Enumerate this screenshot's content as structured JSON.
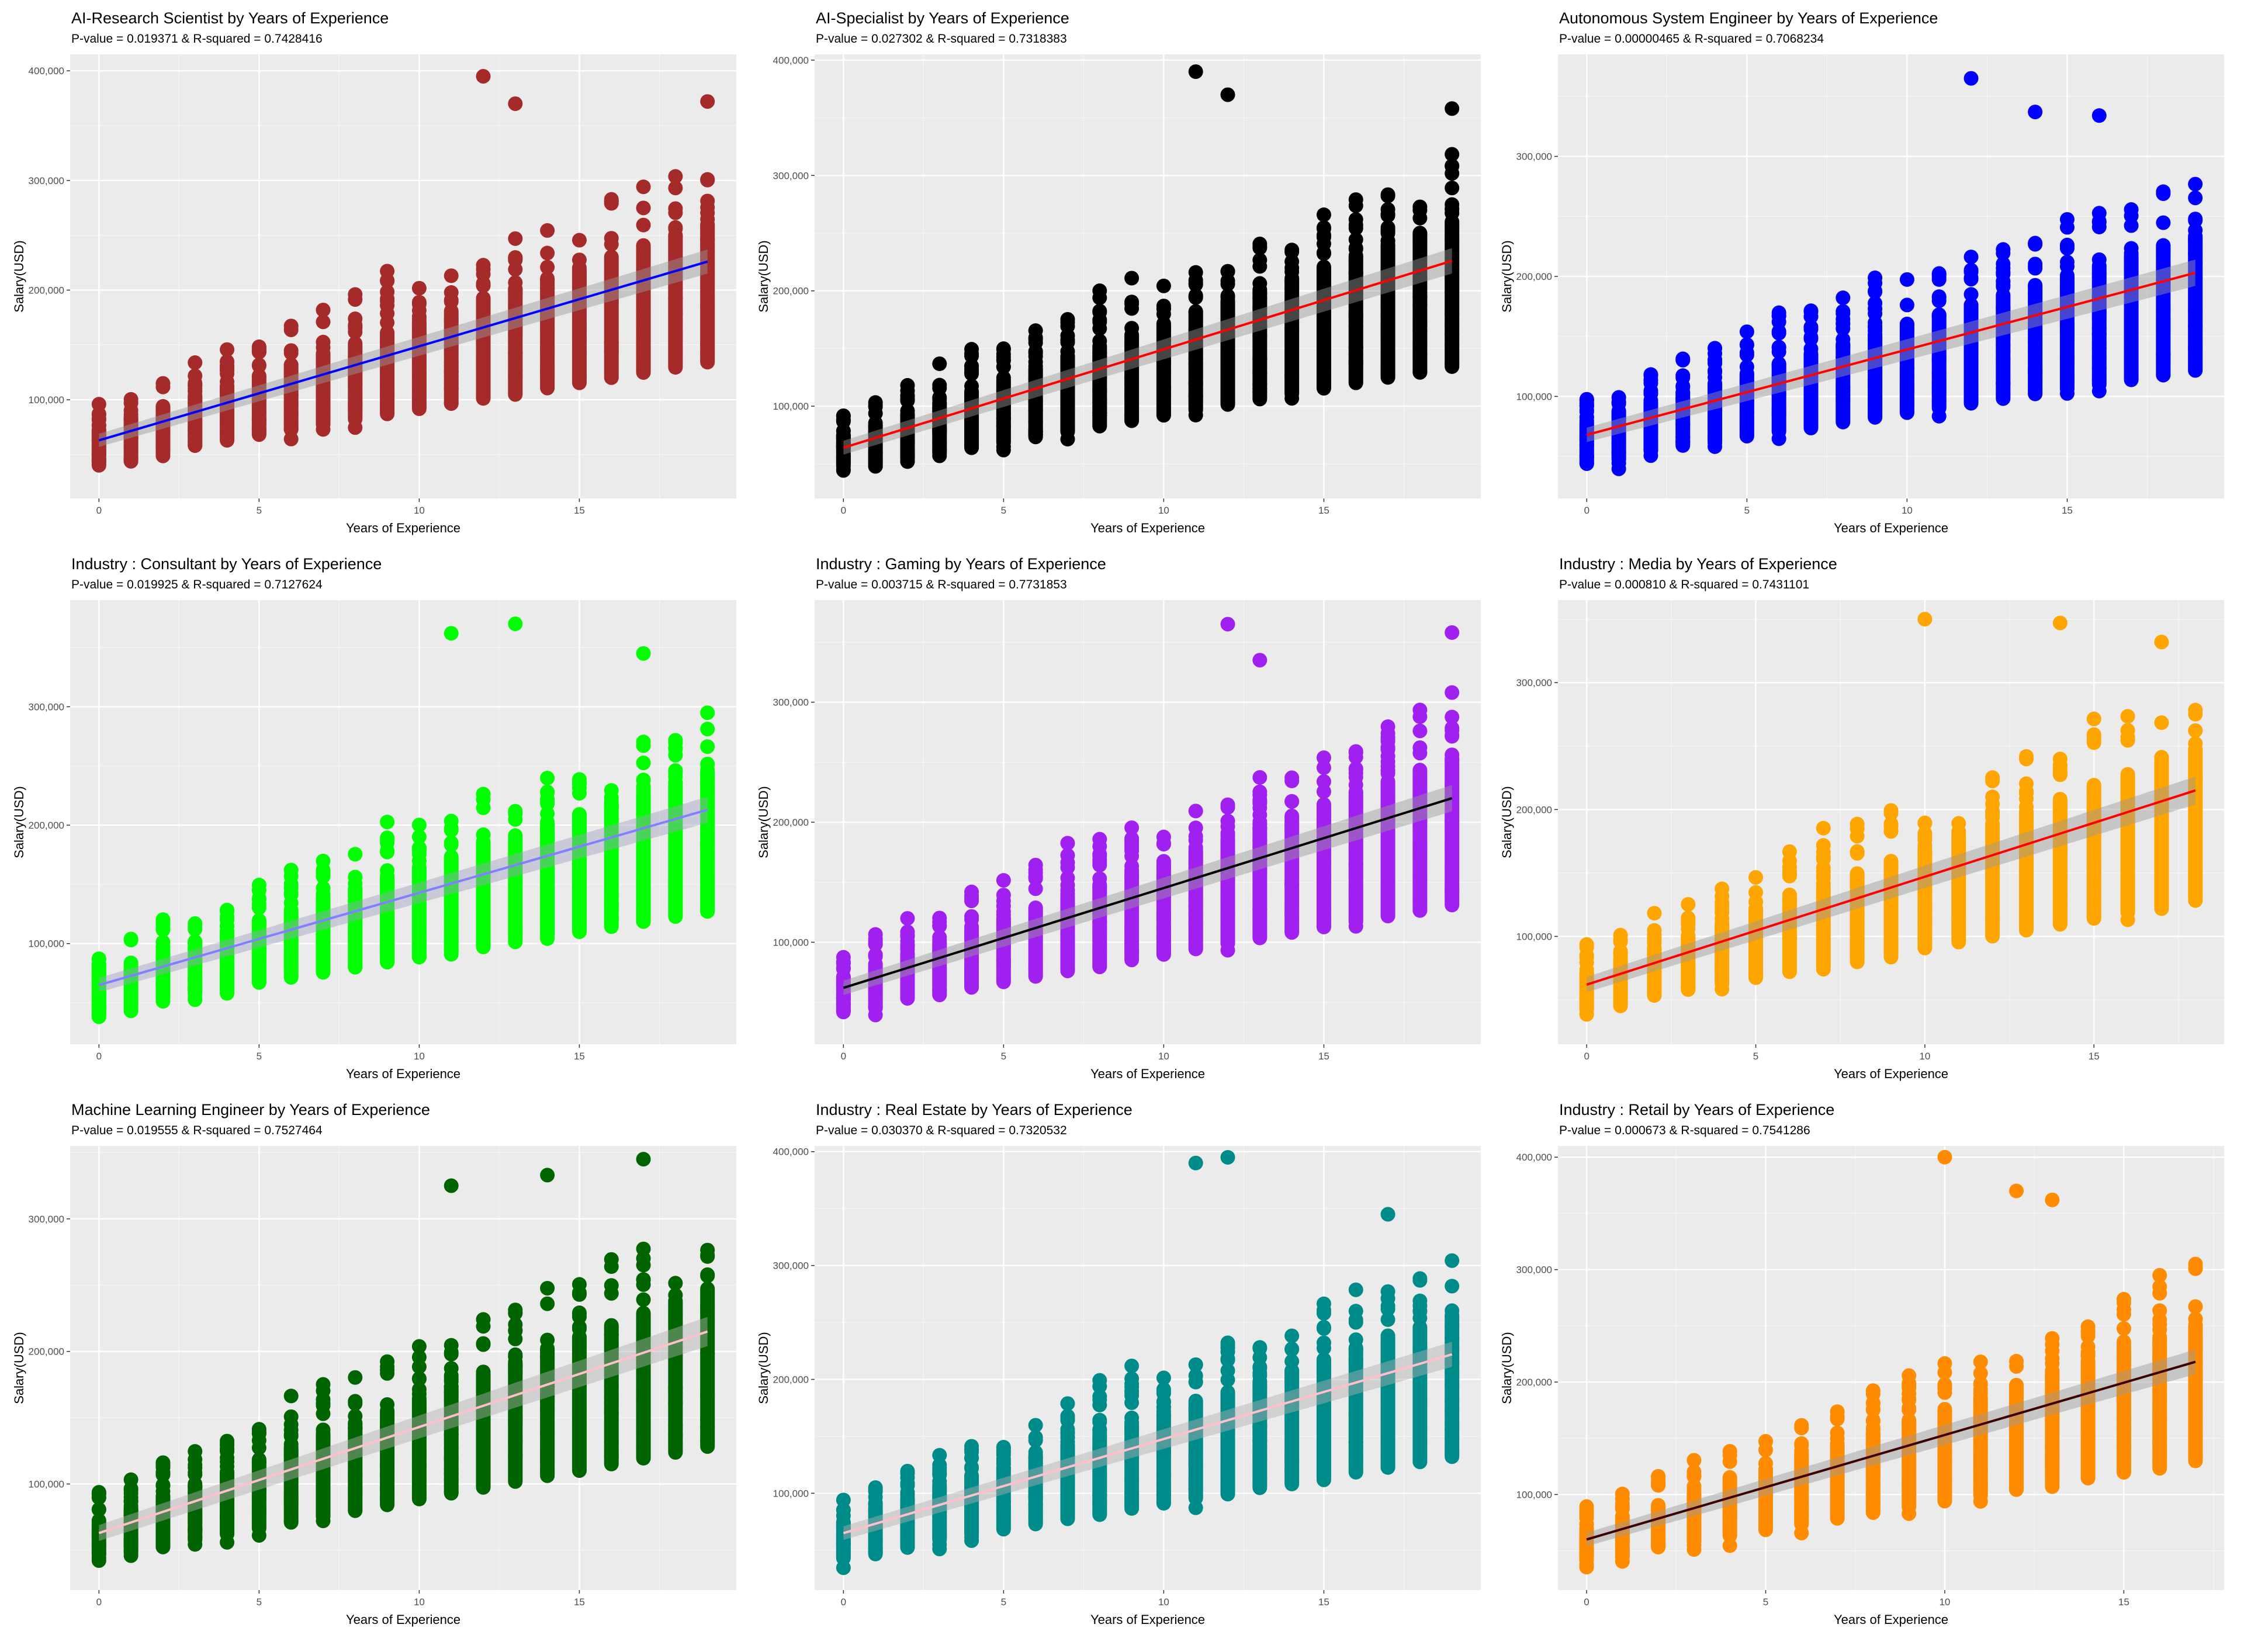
{
  "chart_data": [
    {
      "type": "scatter",
      "title": "AI-Research Scientist by Years of Experience",
      "subtitle": "P-value = 0.019371 & R-squared = 0.7428416",
      "xlabel": "Years of Experience",
      "ylabel": "Salary(USD)",
      "xlim": [
        -0.9,
        19.9
      ],
      "ylim": [
        10000,
        415000
      ],
      "x_ticks": [
        0,
        5,
        10,
        15
      ],
      "y_ticks": [
        100000,
        200000,
        300000,
        400000
      ],
      "y_tick_labels": [
        "100,000",
        "200,000",
        "300,000",
        "400,000"
      ],
      "grid": true,
      "point_color": "#A52A2A",
      "line_color": "#0000FF",
      "band_color": "#999999",
      "max_x": 19,
      "trend": {
        "x": [
          0,
          19
        ],
        "y": [
          63000,
          226000
        ]
      },
      "highlights": [
        [
          12,
          395000
        ],
        [
          19,
          372000
        ],
        [
          13,
          370000
        ]
      ]
    },
    {
      "type": "scatter",
      "title": "AI-Specialist by Years of Experience",
      "subtitle": "P-value = 0.027302 & R-squared = 0.7318383",
      "xlabel": "Years of Experience",
      "ylabel": "Salary(USD)",
      "xlim": [
        -0.9,
        19.9
      ],
      "ylim": [
        20000,
        405000
      ],
      "x_ticks": [
        0,
        5,
        10,
        15
      ],
      "y_ticks": [
        100000,
        200000,
        300000,
        400000
      ],
      "y_tick_labels": [
        "100,000",
        "200,000",
        "300,000",
        "400,000"
      ],
      "grid": true,
      "point_color": "#000000",
      "line_color": "#FF0000",
      "band_color": "#999999",
      "max_x": 19,
      "trend": {
        "x": [
          0,
          19
        ],
        "y": [
          64000,
          226000
        ]
      },
      "highlights": [
        [
          11,
          390000
        ],
        [
          12,
          370000
        ],
        [
          19,
          358000
        ]
      ]
    },
    {
      "type": "scatter",
      "title": "Autonomous System Engineer by Years of Experience",
      "subtitle": "P-value = 0.00000465 & R-squared = 0.7068234",
      "xlabel": "Years of Experience",
      "ylabel": "Salary(USD)",
      "xlim": [
        -0.9,
        19.9
      ],
      "ylim": [
        15000,
        385000
      ],
      "x_ticks": [
        0,
        5,
        10,
        15
      ],
      "y_ticks": [
        100000,
        200000,
        300000
      ],
      "y_tick_labels": [
        "100,000",
        "200,000",
        "300,000"
      ],
      "grid": true,
      "point_color": "#0000FF",
      "line_color": "#FF0000",
      "band_color": "#999999",
      "max_x": 19,
      "trend": {
        "x": [
          0,
          19
        ],
        "y": [
          68000,
          203000
        ]
      },
      "highlights": [
        [
          12,
          365000
        ],
        [
          14,
          337000
        ],
        [
          16,
          334000
        ]
      ]
    },
    {
      "type": "scatter",
      "title": "Industry : Consultant by Years of Experience",
      "subtitle": "P-value = 0.019925 & R-squared = 0.7127624",
      "xlabel": "Years of Experience",
      "ylabel": "Salary(USD)",
      "xlim": [
        -0.9,
        19.9
      ],
      "ylim": [
        15000,
        390000
      ],
      "x_ticks": [
        0,
        5,
        10,
        15
      ],
      "y_ticks": [
        100000,
        200000,
        300000
      ],
      "y_tick_labels": [
        "100,000",
        "200,000",
        "300,000"
      ],
      "grid": true,
      "point_color": "#00FF00",
      "line_color": "#8080FF",
      "band_color": "#A0A0C0",
      "max_x": 19,
      "trend": {
        "x": [
          0,
          19
        ],
        "y": [
          65000,
          213000
        ]
      },
      "highlights": [
        [
          13,
          370000
        ],
        [
          11,
          362000
        ],
        [
          17,
          345000
        ]
      ]
    },
    {
      "type": "scatter",
      "title": "Industry : Gaming by Years of Experience",
      "subtitle": "P-value = 0.003715 & R-squared = 0.7731853",
      "xlabel": "Years of Experience",
      "ylabel": "Salary(USD)",
      "xlim": [
        -0.9,
        19.9
      ],
      "ylim": [
        15000,
        385000
      ],
      "x_ticks": [
        0,
        5,
        10,
        15
      ],
      "y_ticks": [
        100000,
        200000,
        300000
      ],
      "y_tick_labels": [
        "100,000",
        "200,000",
        "300,000"
      ],
      "grid": true,
      "point_color": "#A020F0",
      "line_color": "#000000",
      "band_color": "#999999",
      "max_x": 19,
      "trend": {
        "x": [
          0,
          19
        ],
        "y": [
          62000,
          220000
        ]
      },
      "highlights": [
        [
          12,
          365000
        ],
        [
          19,
          358000
        ],
        [
          13,
          335000
        ]
      ]
    },
    {
      "type": "scatter",
      "title": "Industry : Media by Years of Experience",
      "subtitle": "P-value = 0.000810 & R-squared = 0.7431101",
      "xlabel": "Years of Experience",
      "ylabel": "Salary(USD)",
      "xlim": [
        -0.85,
        18.85
      ],
      "ylim": [
        15000,
        365000
      ],
      "x_ticks": [
        0,
        5,
        10,
        15
      ],
      "y_ticks": [
        100000,
        200000,
        300000
      ],
      "y_tick_labels": [
        "100,000",
        "200,000",
        "300,000"
      ],
      "grid": true,
      "point_color": "#FFA500",
      "line_color": "#FF0000",
      "band_color": "#999999",
      "max_x": 18,
      "trend": {
        "x": [
          0,
          18
        ],
        "y": [
          62000,
          215000
        ]
      },
      "highlights": [
        [
          10,
          350000
        ],
        [
          14,
          347000
        ],
        [
          17,
          332000
        ]
      ]
    },
    {
      "type": "scatter",
      "title": "Machine Learning Engineer by Years of Experience",
      "subtitle": "P-value = 0.019555 & R-squared = 0.7527464",
      "xlabel": "Years of Experience",
      "ylabel": "Salary(USD)",
      "xlim": [
        -0.9,
        19.9
      ],
      "ylim": [
        20000,
        355000
      ],
      "x_ticks": [
        0,
        5,
        10,
        15
      ],
      "y_ticks": [
        100000,
        200000,
        300000
      ],
      "y_tick_labels": [
        "100,000",
        "200,000",
        "300,000"
      ],
      "grid": true,
      "point_color": "#006400",
      "line_color": "#FFC0CB",
      "band_color": "#B0B0B0",
      "max_x": 19,
      "trend": {
        "x": [
          0,
          19
        ],
        "y": [
          63000,
          215000
        ]
      },
      "highlights": [
        [
          17,
          345000
        ],
        [
          14,
          333000
        ],
        [
          11,
          325000
        ]
      ]
    },
    {
      "type": "scatter",
      "title": "Industry : Real Estate by Years of Experience",
      "subtitle": "P-value = 0.030370 & R-squared = 0.7320532",
      "xlabel": "Years of Experience",
      "ylabel": "Salary(USD)",
      "xlim": [
        -0.9,
        19.9
      ],
      "ylim": [
        15000,
        405000
      ],
      "x_ticks": [
        0,
        5,
        10,
        15
      ],
      "y_ticks": [
        100000,
        200000,
        300000,
        400000
      ],
      "y_tick_labels": [
        "100,000",
        "200,000",
        "300,000",
        "400,000"
      ],
      "grid": true,
      "point_color": "#008B8B",
      "line_color": "#FFC0CB",
      "band_color": "#B0B0B0",
      "max_x": 19,
      "trend": {
        "x": [
          0,
          19
        ],
        "y": [
          65000,
          222000
        ]
      },
      "highlights": [
        [
          12,
          395000
        ],
        [
          11,
          390000
        ],
        [
          17,
          345000
        ]
      ]
    },
    {
      "type": "scatter",
      "title": "Industry : Retail by Years of Experience",
      "subtitle": "P-value = 0.000673 & R-squared = 0.7541286",
      "xlabel": "Years of Experience",
      "ylabel": "Salary(USD)",
      "xlim": [
        -0.8,
        17.8
      ],
      "ylim": [
        15000,
        410000
      ],
      "x_ticks": [
        0,
        5,
        10,
        15
      ],
      "y_ticks": [
        100000,
        200000,
        300000,
        400000
      ],
      "y_tick_labels": [
        "100,000",
        "200,000",
        "300,000",
        "400,000"
      ],
      "grid": true,
      "point_color": "#FF8C00",
      "line_color": "#3D0000",
      "band_color": "#999999",
      "max_x": 17,
      "trend": {
        "x": [
          0,
          17
        ],
        "y": [
          60000,
          218000
        ]
      },
      "highlights": [
        [
          10,
          400000
        ],
        [
          12,
          370000
        ],
        [
          13,
          362000
        ]
      ]
    }
  ]
}
